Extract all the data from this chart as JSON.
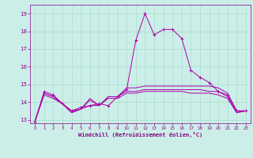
{
  "xlabel": "Windchill (Refroidissement éolien,°C)",
  "background_color": "#cceee8",
  "grid_color": "#aaddcc",
  "line_color": "#aa00aa",
  "xlim": [
    -0.5,
    23.5
  ],
  "ylim": [
    12.8,
    19.5
  ],
  "yticks": [
    13,
    14,
    15,
    16,
    17,
    18,
    19
  ],
  "xticks": [
    0,
    1,
    2,
    3,
    4,
    5,
    6,
    7,
    8,
    9,
    10,
    11,
    12,
    13,
    14,
    15,
    16,
    17,
    18,
    19,
    20,
    21,
    22,
    23
  ],
  "hours": [
    0,
    1,
    2,
    3,
    4,
    5,
    6,
    7,
    8,
    9,
    10,
    11,
    12,
    13,
    14,
    15,
    16,
    17,
    18,
    19,
    20,
    21,
    22,
    23
  ],
  "temp": [
    12.9,
    14.6,
    14.4,
    13.9,
    13.5,
    13.7,
    13.8,
    13.9,
    13.8,
    14.3,
    14.7,
    17.5,
    19.0,
    17.8,
    18.1,
    18.1,
    17.6,
    15.8,
    15.4,
    15.1,
    14.6,
    14.4,
    13.5,
    13.5
  ],
  "windchill": [
    12.9,
    14.5,
    14.3,
    13.9,
    13.4,
    13.6,
    14.2,
    13.8,
    14.3,
    14.3,
    14.8,
    14.8,
    14.9,
    14.9,
    14.9,
    14.9,
    14.9,
    14.9,
    14.9,
    14.9,
    14.8,
    14.5,
    13.5,
    13.5
  ],
  "line3": [
    12.9,
    14.5,
    14.3,
    13.9,
    13.4,
    13.6,
    14.1,
    13.8,
    14.3,
    14.3,
    14.6,
    14.6,
    14.7,
    14.7,
    14.7,
    14.7,
    14.7,
    14.7,
    14.7,
    14.6,
    14.6,
    14.3,
    13.4,
    13.5
  ],
  "line4": [
    12.9,
    14.4,
    14.2,
    13.9,
    13.5,
    13.6,
    13.8,
    13.8,
    14.2,
    14.2,
    14.5,
    14.5,
    14.6,
    14.6,
    14.6,
    14.6,
    14.6,
    14.5,
    14.5,
    14.5,
    14.4,
    14.2,
    13.4,
    13.5
  ],
  "fig_width": 3.2,
  "fig_height": 2.0,
  "dpi": 100
}
